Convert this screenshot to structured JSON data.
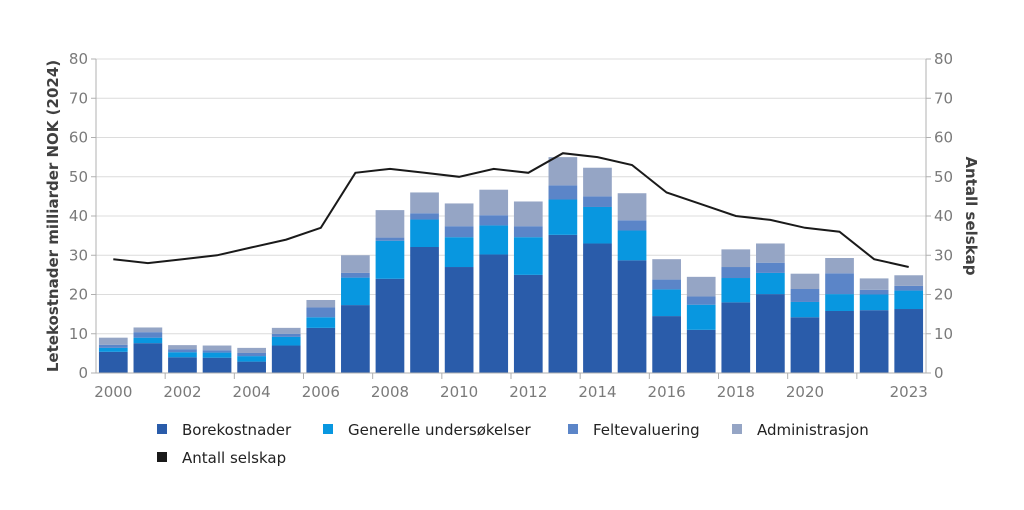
{
  "chart_data": {
    "type": "bar",
    "stacked": true,
    "categories": [
      "2000",
      "2001",
      "2002",
      "2003",
      "2004",
      "2005",
      "2006",
      "2007",
      "2008",
      "2009",
      "2010",
      "2011",
      "2012",
      "2013",
      "2014",
      "2015",
      "2016",
      "2017",
      "2018",
      "2019",
      "2020",
      "2021",
      "2022",
      "2023"
    ],
    "x_tick_labels": [
      "2000",
      "2002",
      "2004",
      "2006",
      "2008",
      "2010",
      "2012",
      "2014",
      "2016",
      "2018",
      "2020",
      "2023"
    ],
    "ylabel_left": "Letekostnader milliarder NOK (2024)",
    "ylabel_right": "Antall selskap",
    "ylim": [
      0,
      80
    ],
    "y_ticks": [
      0,
      10,
      20,
      30,
      40,
      50,
      60,
      70,
      80
    ],
    "grid": true,
    "legend_position": "bottom",
    "series": [
      {
        "name": "Borekostnader",
        "color": "#2a5caa",
        "values": [
          5.4,
          7.6,
          4,
          3.9,
          2.9,
          7,
          11.5,
          17.3,
          24,
          32.1,
          27,
          30.2,
          25,
          35.2,
          33,
          28.7,
          14.5,
          11,
          18,
          20.1,
          14.2,
          15.8,
          16,
          16.3
        ]
      },
      {
        "name": "Generelle undersøkelser",
        "color": "#0897e0",
        "values": [
          1,
          1.4,
          1.3,
          1.3,
          1.4,
          2.2,
          2.7,
          7,
          9.7,
          7,
          7.6,
          7.4,
          9.6,
          9,
          9.3,
          7.6,
          6.8,
          6.4,
          6.2,
          5.4,
          3.9,
          4.3,
          4,
          4.7
        ]
      },
      {
        "name": "Feltevaluering",
        "color": "#5b85c8",
        "values": [
          0.8,
          1.4,
          0.7,
          0.6,
          0.8,
          0.8,
          2.5,
          1.2,
          0.8,
          1.6,
          2.8,
          2.6,
          2.8,
          3.6,
          2.7,
          2.6,
          2.5,
          2.1,
          2.8,
          2.6,
          3.3,
          5.3,
          1.2,
          1.2
        ]
      },
      {
        "name": "Administrasjon",
        "color": "#95a5c5",
        "values": [
          1.8,
          1.2,
          1.1,
          1.2,
          1.3,
          1.5,
          1.9,
          4.5,
          7,
          5.3,
          5.8,
          6.5,
          6.3,
          7.2,
          7.3,
          6.9,
          5.2,
          5,
          4.5,
          4.9,
          3.9,
          3.9,
          2.9,
          2.7
        ]
      }
    ],
    "line_series": {
      "name": "Antall selskap",
      "color": "#1a1a1a",
      "axis": "right",
      "values": [
        29,
        28,
        29,
        30,
        32,
        34,
        37,
        51,
        52,
        51,
        50,
        52,
        51,
        56,
        55,
        53,
        46,
        43,
        40,
        39,
        37,
        36,
        29,
        27
      ]
    }
  }
}
